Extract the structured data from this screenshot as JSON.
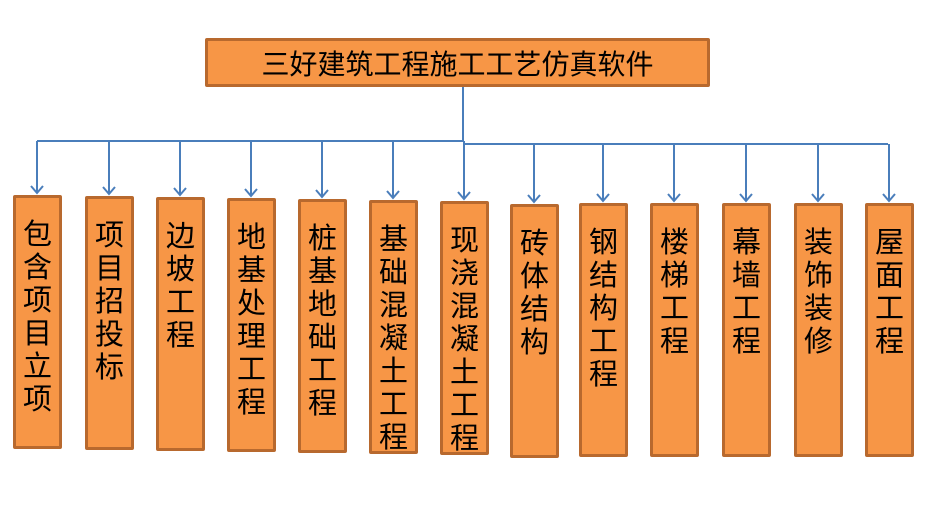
{
  "title": "三好建筑工程施工工艺仿真软件",
  "colors": {
    "box_fill": "#f79646",
    "box_border": "#b8692e",
    "connector": "#4a7ebb"
  },
  "nodes": [
    "包含项目立项",
    "项目招投标",
    "边坡工程",
    "地基处理工程",
    "桩基地础工程",
    "基础混凝土工程",
    "现浇混凝土工程",
    "砖体结构",
    "钢结构工程",
    "楼梯工程",
    "幕墙工程",
    "装饰装修",
    "屋面工程"
  ]
}
